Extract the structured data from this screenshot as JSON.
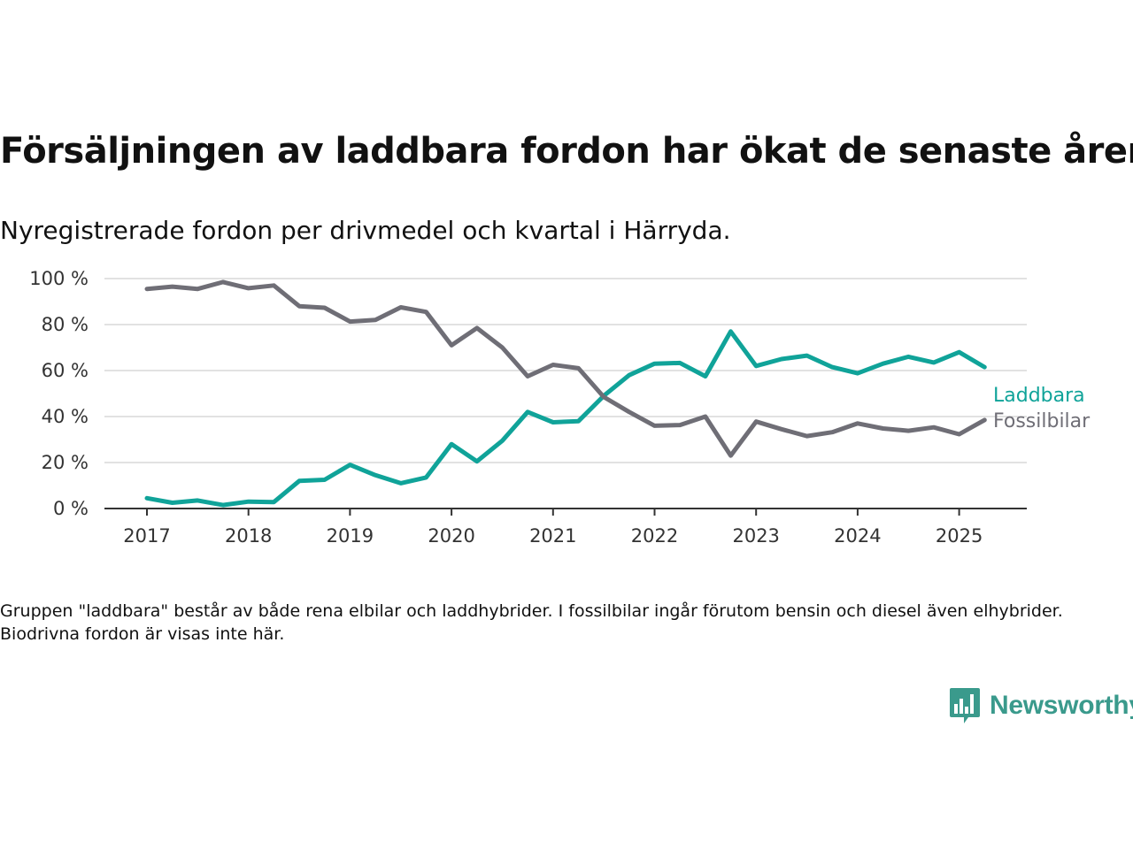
{
  "header": {
    "title": "Försäljningen av laddbara fordon har ökat de senaste åren",
    "subtitle": "Nyregistrerade fordon per drivmedel och kvartal i Härryda."
  },
  "footnote": "Gruppen \"laddbara\" består av både rena elbilar och laddhybrider. I fossilbilar ingår förutom bensin och diesel även elhybrider. Biodrivna fordon är visas inte här.",
  "brand": {
    "name": "Newsworthy",
    "icon": "bar-chart-speech-bubble-icon",
    "color": "#3a9a8c"
  },
  "chart_data": {
    "type": "line",
    "title": "",
    "xlabel": "",
    "ylabel": "",
    "x_quarters": [
      "2017-Q1",
      "2017-Q2",
      "2017-Q3",
      "2017-Q4",
      "2018-Q1",
      "2018-Q2",
      "2018-Q3",
      "2018-Q4",
      "2019-Q1",
      "2019-Q2",
      "2019-Q3",
      "2019-Q4",
      "2020-Q1",
      "2020-Q2",
      "2020-Q3",
      "2020-Q4",
      "2021-Q1",
      "2021-Q2",
      "2021-Q3",
      "2021-Q4",
      "2022-Q1",
      "2022-Q2",
      "2022-Q3",
      "2022-Q4",
      "2023-Q1",
      "2023-Q2",
      "2023-Q3",
      "2023-Q4",
      "2024-Q1",
      "2024-Q2",
      "2024-Q3",
      "2024-Q4",
      "2025-Q1",
      "2025-Q2"
    ],
    "x_ticks": [
      "2017",
      "2018",
      "2019",
      "2020",
      "2021",
      "2022",
      "2023",
      "2024",
      "2025"
    ],
    "y_ticks": [
      0,
      20,
      40,
      60,
      80,
      100
    ],
    "y_tick_format": "{v} %",
    "ylim": [
      0,
      100
    ],
    "grid": true,
    "series": [
      {
        "name": "Laddbara",
        "color": "#10a399",
        "values": [
          4.5,
          2.5,
          3.5,
          1.5,
          3,
          2.8,
          12,
          12.5,
          19,
          14.5,
          11,
          13.5,
          28,
          20.5,
          29.5,
          42,
          37.5,
          38,
          49,
          58,
          63,
          63.3,
          57.5,
          77,
          62,
          65,
          66.5,
          61.5,
          58.8,
          63,
          66,
          63.5,
          68,
          61.5
        ]
      },
      {
        "name": "Fossilbilar",
        "color": "#6f6e76",
        "values": [
          95.5,
          96.5,
          95.5,
          98.5,
          95.8,
          97,
          88,
          87.3,
          81.3,
          82,
          87.5,
          85.5,
          71,
          78.5,
          70,
          57.5,
          62.5,
          61,
          48.5,
          42,
          36,
          36.3,
          40,
          23,
          37.8,
          34.5,
          31.5,
          33.2,
          37,
          34.8,
          33.8,
          35.3,
          32.3,
          38.5
        ]
      }
    ]
  }
}
